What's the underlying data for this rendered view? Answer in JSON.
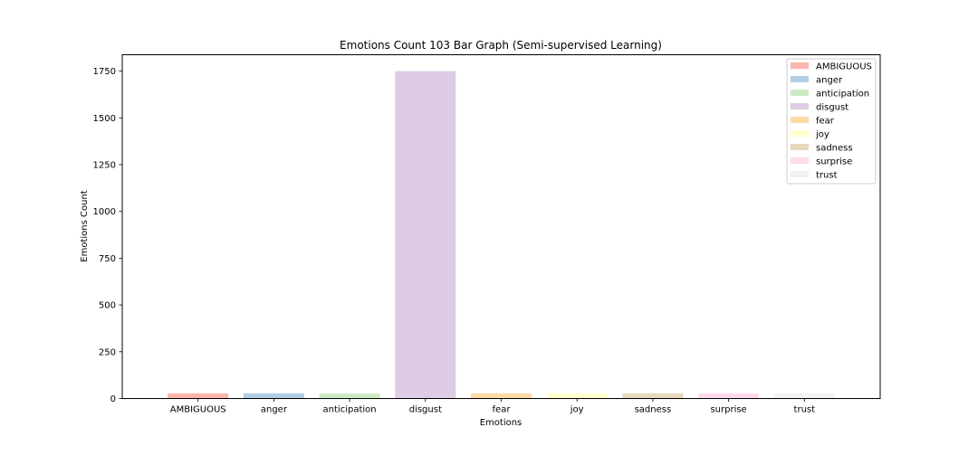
{
  "chart_data": {
    "type": "bar",
    "title": "Emotions Count 103 Bar Graph (Semi-supervised Learning)",
    "xlabel": "Emotions",
    "ylabel": "Emotions Count",
    "categories": [
      "AMBIGUOUS",
      "anger",
      "anticipation",
      "disgust",
      "fear",
      "joy",
      "sadness",
      "surprise",
      "trust"
    ],
    "values": [
      28,
      28,
      28,
      1750,
      28,
      28,
      28,
      28,
      28
    ],
    "colors": [
      "#fbb4ae",
      "#b3cde3",
      "#ccebc5",
      "#decbe4",
      "#fed9a6",
      "#ffffcc",
      "#e5d8bd",
      "#fddaec",
      "#f2f2f2"
    ],
    "ylim": [
      0,
      1837.5
    ],
    "yticks": [
      0,
      250,
      500,
      750,
      1000,
      1250,
      1500,
      1750
    ],
    "grid": false,
    "legend_position": "top-right",
    "legend": [
      "AMBIGUOUS",
      "anger",
      "anticipation",
      "disgust",
      "fear",
      "joy",
      "sadness",
      "surprise",
      "trust"
    ]
  }
}
